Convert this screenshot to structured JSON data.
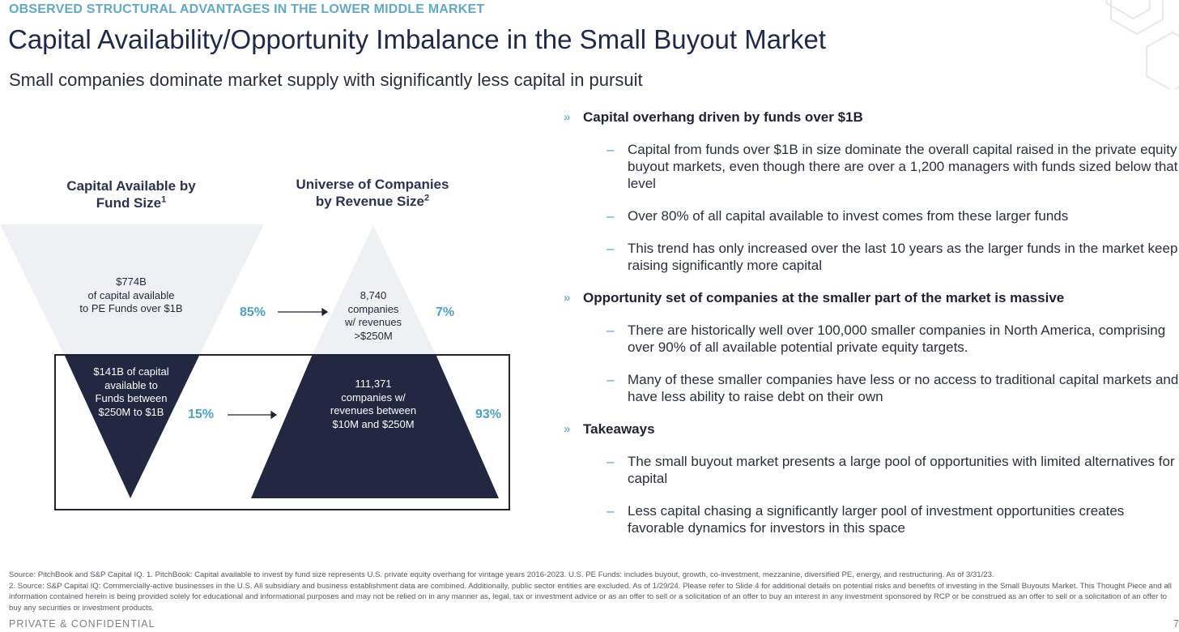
{
  "header": {
    "eyebrow": "OBSERVED STRUCTURAL ADVANTAGES IN THE LOWER MIDDLE MARKET",
    "title": "Capital Availability/Opportunity Imbalance in the Small Buyout Market",
    "subtitle": "Small companies dominate market supply with significantly less capital in pursuit"
  },
  "left_chart": {
    "title": "Capital Available by",
    "title2": "Fund Size",
    "title_sup": "1",
    "upper_lines": [
      "$774B",
      "of capital available",
      "to PE Funds over $1B"
    ],
    "lower_lines": [
      "$141B of capital",
      "available to",
      "Funds  between",
      "$250M to $1B"
    ],
    "upper_pct": "85%",
    "lower_pct": "15%"
  },
  "right_chart": {
    "title": "Universe of Companies",
    "title2": "by Revenue Size",
    "title_sup": "2",
    "upper_lines": [
      "8,740",
      "companies",
      "w/ revenues",
      ">$250M"
    ],
    "lower_lines": [
      "111,371",
      "companies w/",
      "revenues between",
      "$10M and $250M"
    ],
    "upper_pct": "7%",
    "lower_pct": "93%"
  },
  "colors": {
    "accent": "#4aa2cc",
    "navy": "#1e2232",
    "light_gray": "#eef0f4",
    "dark_tri": "#232842"
  },
  "bullets": {
    "marker": "»",
    "dash": "–",
    "s1": {
      "heading": "Capital overhang driven by funds over $1B",
      "items": [
        "Capital from funds over $1B in size dominate the overall capital raised in the private equity buyout markets, even though there are over a 1,200 managers with funds sized below that level",
        "Over 80% of all capital available to invest comes from these larger funds",
        "This trend has only increased over the last 10 years as the larger funds in the market keep raising significantly more capital"
      ]
    },
    "s2": {
      "heading": "Opportunity set of companies at the smaller part of the market is massive",
      "items": [
        "There are historically well over 100,000 smaller companies in North America, comprising over 90% of all available potential private equity targets.",
        "Many of these smaller companies have less or no access to traditional capital markets and have less ability to raise debt on their own"
      ]
    },
    "s3": {
      "heading": "Takeaways",
      "items": [
        "The small buyout market presents a large pool of opportunities with limited alternatives for capital",
        "Less capital chasing a significantly larger pool of investment opportunities creates favorable dynamics for investors in this space"
      ]
    }
  },
  "footer": {
    "source1": "Source: PitchBook and S&P Capital IQ. 1. PitchBook: Capital available to invest by fund size represents U.S. private equity overhang for vintage years 2016-2023. U.S. PE Funds: includes buyout, growth, co-investment, mezzanine, diversified PE, energy, and restructuring. As of 3/31/23.",
    "source2": "2. Source: S&P Capital IQ: Commercially-active businesses in the U.S. All subsidiary and business establishment data are combined. Additionally, public sector entities are excluded. As of 1/29/24. Please refer to Slide 4 for additional details on potential risks and benefits of investing in the Small Buyouts Market. This Thought Piece and all information contained herein is being provided solely for educational and informational purposes and may not be relied on in any manner as, legal, tax or investment advice or as an offer to sell or a solicitation of an offer to buy an interest in any investment sponsored by RCP or be construed as an offer to sell or a solicitation of an offer to buy any securities or investment products.",
    "confidential": "PRIVATE & CONFIDENTIAL",
    "page": "7"
  }
}
